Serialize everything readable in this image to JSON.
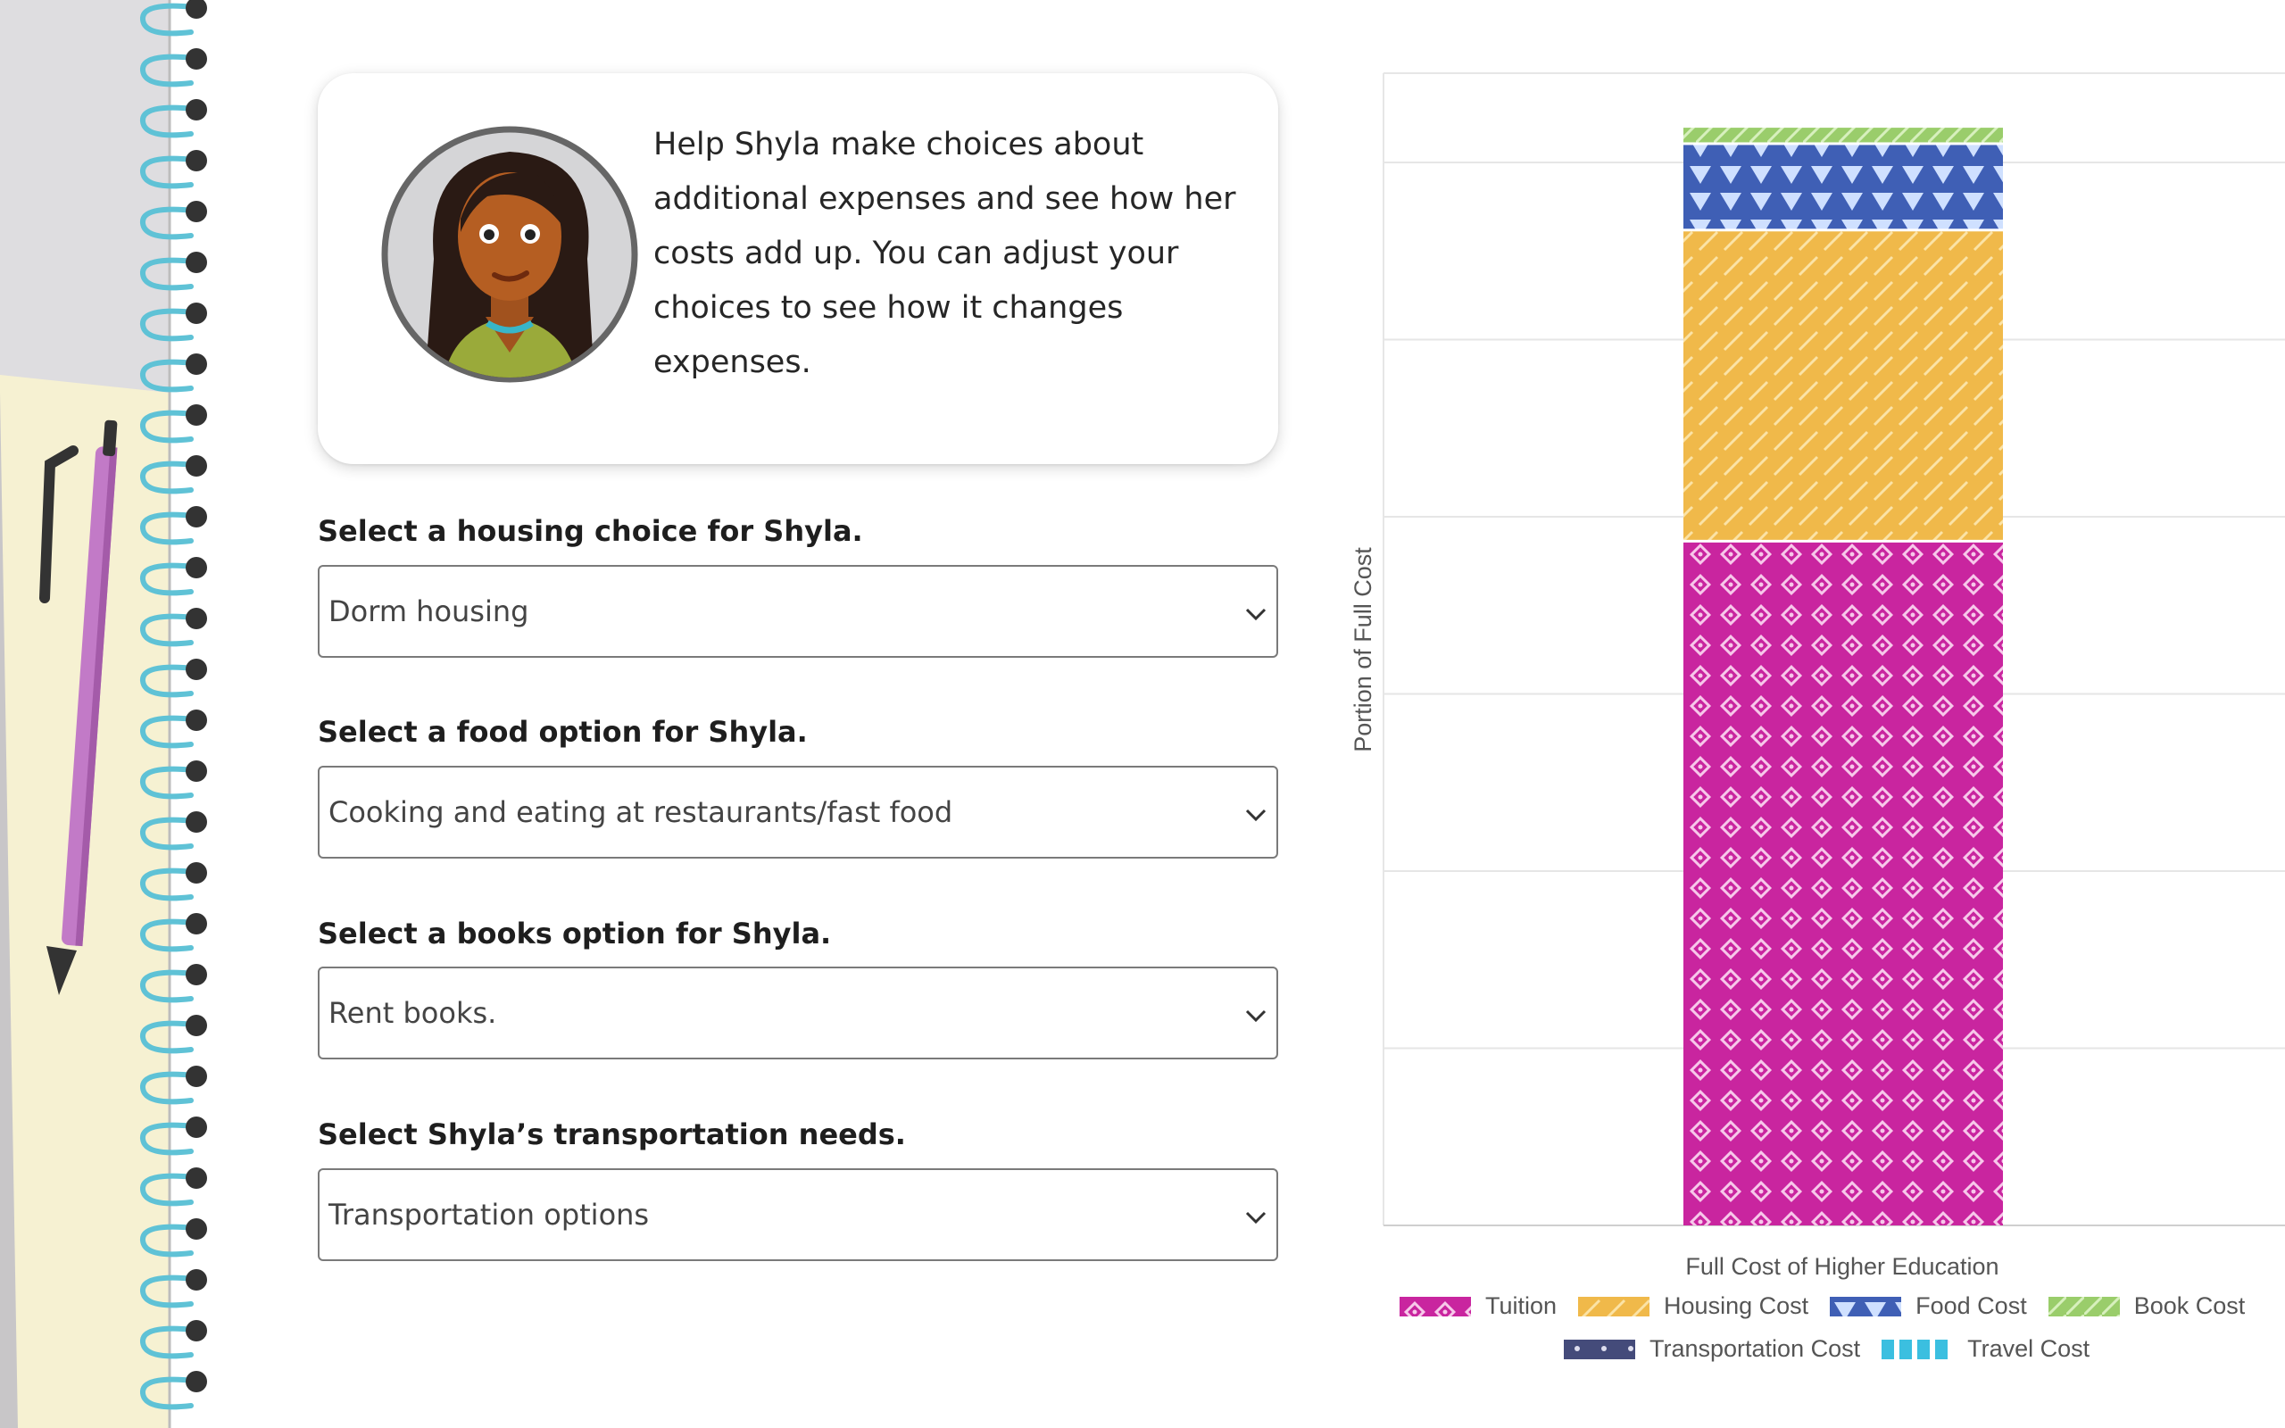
{
  "intro": {
    "text": "Help Shyla make choices about additional expenses and see how her costs add up. You can adjust your choices to see how it changes expenses."
  },
  "form": {
    "housing": {
      "label": "Select a housing choice for Shyla.",
      "value": "Dorm housing"
    },
    "food": {
      "label": "Select a food option for Shyla.",
      "value": "Cooking and eating at restaurants/fast food"
    },
    "books": {
      "label": "Select a books option for Shyla.",
      "value": "Rent books."
    },
    "transport": {
      "label": "Select Shyla’s transportation needs.",
      "value": "Transportation options"
    }
  },
  "chart_data": {
    "type": "bar",
    "stacked": true,
    "categories": [
      ""
    ],
    "xlabel": "Full Cost of Higher Education",
    "ylabel": "Portion of Full Cost",
    "ylim": [
      0,
      1
    ],
    "grid": true,
    "legend_position": "bottom",
    "series": [
      {
        "name": "Tuition",
        "values": [
          0.595
        ],
        "color": "#c9259f"
      },
      {
        "name": "Housing Cost",
        "values": [
          0.27
        ],
        "color": "#f0b94a"
      },
      {
        "name": "Food Cost",
        "values": [
          0.075
        ],
        "color": "#3f5fb5"
      },
      {
        "name": "Book Cost",
        "values": [
          0.015
        ],
        "color": "#9acd6b"
      },
      {
        "name": "Transportation Cost",
        "values": [
          0
        ],
        "color": "#444b7a"
      },
      {
        "name": "Travel Cost",
        "values": [
          0
        ],
        "color": "#3bbfe0"
      }
    ]
  }
}
